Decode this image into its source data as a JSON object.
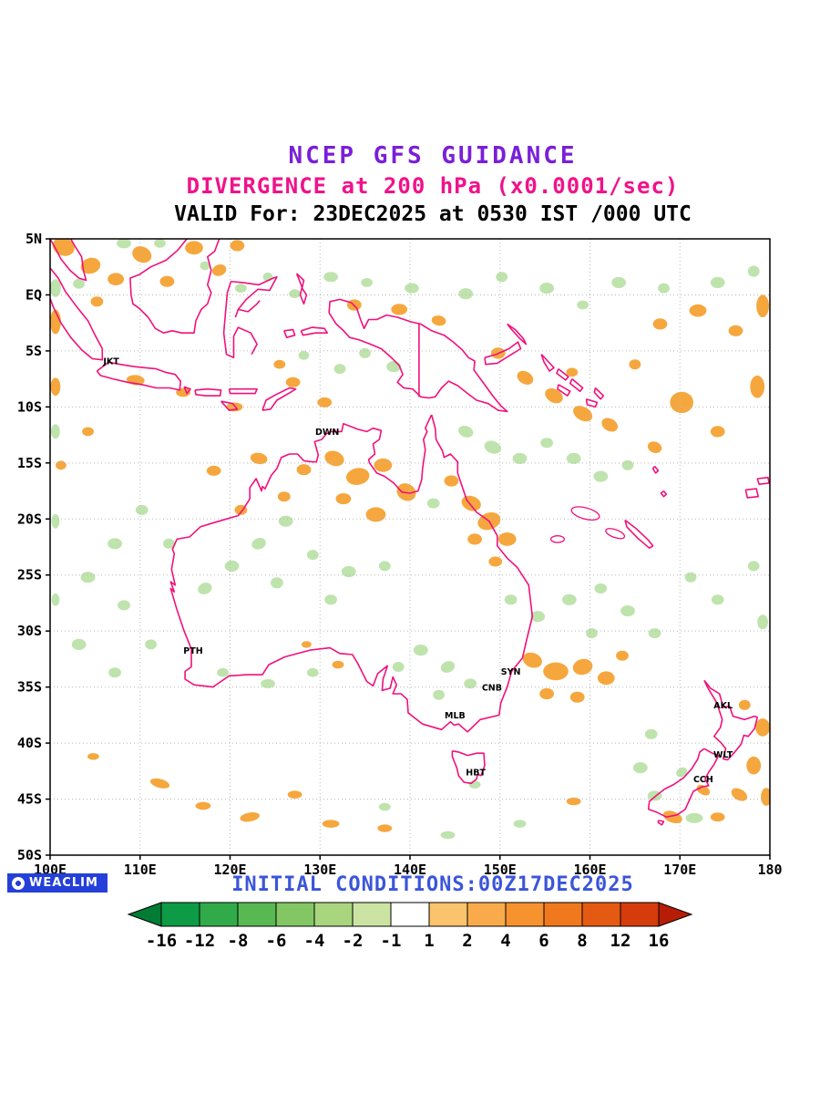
{
  "header": {
    "title": "NCEP GFS GUIDANCE",
    "subtitle": "DIVERGENCE at 200 hPa (x0.0001/sec)",
    "valid_line": "VALID For: 23DEC2025 at 0530 IST /000 UTC"
  },
  "footer": {
    "initial_conditions": "INITIAL CONDITIONS:00Z17DEC2025",
    "logo_text": "WEACLIM"
  },
  "colors": {
    "title_purple": "#7a1fd8",
    "title_magenta": "#f0128a",
    "coastline_pink": "#f0117c",
    "positive_fill": "#f5a73e",
    "negative_fill": "#bfe3ad",
    "grid_gray": "#b8b8b8",
    "footer_blue": "#3b55d9",
    "logo_bg": "#2440d9"
  },
  "chart_data": {
    "type": "heatmap",
    "title": "NCEP GFS GUIDANCE",
    "variable": "Divergence",
    "level": "200 hPa",
    "units": "x0.0001/sec",
    "valid": "23DEC2025 at 0530 IST /000 UTC",
    "initial_conditions": "00Z17DEC2025",
    "region": "100E-180E, 50S-5N (Australia / Oceania)",
    "xlim": [
      100,
      180
    ],
    "ylim": [
      -50,
      5
    ],
    "grid": "dotted",
    "x_ticks": [
      {
        "label": "100E",
        "lon": 100
      },
      {
        "label": "110E",
        "lon": 110
      },
      {
        "label": "120E",
        "lon": 120
      },
      {
        "label": "130E",
        "lon": 130
      },
      {
        "label": "140E",
        "lon": 140
      },
      {
        "label": "150E",
        "lon": 150
      },
      {
        "label": "160E",
        "lon": 160
      },
      {
        "label": "170E",
        "lon": 170
      },
      {
        "label": "180",
        "lon": 180
      }
    ],
    "y_ticks": [
      {
        "label": "5N",
        "lat": 5
      },
      {
        "label": "EQ",
        "lat": 0
      },
      {
        "label": "5S",
        "lat": -5
      },
      {
        "label": "10S",
        "lat": -10
      },
      {
        "label": "15S",
        "lat": -15
      },
      {
        "label": "20S",
        "lat": -20
      },
      {
        "label": "25S",
        "lat": -25
      },
      {
        "label": "30S",
        "lat": -30
      },
      {
        "label": "35S",
        "lat": -35
      },
      {
        "label": "40S",
        "lat": -40
      },
      {
        "label": "45S",
        "lat": -45
      },
      {
        "label": "50S",
        "lat": -50
      }
    ],
    "colorbar": {
      "tick_labels": [
        "-16",
        "-12",
        "-8",
        "-6",
        "-4",
        "-2",
        "-1",
        "1",
        "2",
        "4",
        "6",
        "8",
        "12",
        "16"
      ],
      "cell_colors": [
        "#0d9b45",
        "#31aa49",
        "#58b953",
        "#82c764",
        "#a8d57e",
        "#cbe4a4",
        "#ffffff",
        "#fbc36b",
        "#f9ab4b",
        "#f7932f",
        "#f0791d",
        "#e55a12",
        "#d63b0c"
      ],
      "arrow_left_color": "#027c35",
      "arrow_right_color": "#b71d06"
    },
    "stations": [
      {
        "id": "JKT",
        "lon": 106.8,
        "lat": -6.2
      },
      {
        "id": "DWN",
        "lon": 130.8,
        "lat": -12.5
      },
      {
        "id": "PTH",
        "lon": 115.9,
        "lat": -32.0
      },
      {
        "id": "SYN",
        "lon": 151.2,
        "lat": -33.9
      },
      {
        "id": "CNB",
        "lon": 149.1,
        "lat": -35.3
      },
      {
        "id": "MLB",
        "lon": 145.0,
        "lat": -37.8
      },
      {
        "id": "HBT",
        "lon": 147.3,
        "lat": -42.9
      },
      {
        "id": "AKL",
        "lon": 174.8,
        "lat": -36.9
      },
      {
        "id": "WLT",
        "lon": 174.8,
        "lat": -41.3
      },
      {
        "id": "CCH",
        "lon": 172.6,
        "lat": -43.5
      }
    ],
    "positive_regions": [
      [
        101.5,
        4.3,
        2.5,
        1.6,
        20
      ],
      [
        104.5,
        2.6,
        2.2,
        1.4,
        -15
      ],
      [
        107.3,
        1.4,
        1.8,
        1.1,
        0
      ],
      [
        110.2,
        3.6,
        2.2,
        1.4,
        25
      ],
      [
        113.0,
        1.2,
        1.6,
        1.0,
        0
      ],
      [
        116.0,
        4.2,
        2.0,
        1.2,
        0
      ],
      [
        118.8,
        2.2,
        1.6,
        1.0,
        -20
      ],
      [
        120.8,
        4.4,
        1.6,
        1.0,
        0
      ],
      [
        100.6,
        -2.4,
        1.2,
        2.2,
        0
      ],
      [
        105.2,
        -0.6,
        1.4,
        0.9,
        0
      ],
      [
        109.5,
        -7.6,
        2.0,
        0.9,
        5
      ],
      [
        114.8,
        -8.7,
        1.6,
        0.8,
        0
      ],
      [
        120.5,
        -10.0,
        1.8,
        0.8,
        0
      ],
      [
        127.0,
        -7.8,
        1.6,
        0.9,
        0
      ],
      [
        130.5,
        -9.6,
        1.6,
        0.9,
        0
      ],
      [
        125.5,
        -6.2,
        1.3,
        0.8,
        0
      ],
      [
        133.8,
        -0.9,
        1.6,
        1.0,
        0
      ],
      [
        138.8,
        -1.3,
        1.8,
        1.0,
        0
      ],
      [
        143.2,
        -2.3,
        1.6,
        0.9,
        10
      ],
      [
        131.6,
        -14.6,
        2.2,
        1.3,
        20
      ],
      [
        134.2,
        -16.2,
        2.6,
        1.5,
        -10
      ],
      [
        137.0,
        -15.2,
        2.0,
        1.2,
        0
      ],
      [
        139.6,
        -17.6,
        2.2,
        1.5,
        30
      ],
      [
        136.2,
        -19.6,
        2.2,
        1.3,
        0
      ],
      [
        132.6,
        -18.2,
        1.7,
        1.0,
        0
      ],
      [
        128.2,
        -15.6,
        1.6,
        1.0,
        0
      ],
      [
        123.2,
        -14.6,
        1.9,
        1.0,
        10
      ],
      [
        118.2,
        -15.7,
        1.6,
        0.9,
        0
      ],
      [
        121.2,
        -19.2,
        1.4,
        0.9,
        0
      ],
      [
        126.0,
        -18.0,
        1.4,
        0.9,
        0
      ],
      [
        144.6,
        -16.6,
        1.6,
        1.0,
        0
      ],
      [
        146.8,
        -18.6,
        2.2,
        1.3,
        20
      ],
      [
        148.8,
        -20.2,
        2.6,
        1.5,
        -20
      ],
      [
        150.8,
        -21.8,
        2.0,
        1.2,
        0
      ],
      [
        147.2,
        -21.8,
        1.6,
        1.0,
        0
      ],
      [
        149.5,
        -23.8,
        1.5,
        0.9,
        0
      ],
      [
        152.8,
        -7.4,
        1.9,
        1.1,
        30
      ],
      [
        156.0,
        -9.0,
        2.1,
        1.2,
        30
      ],
      [
        159.2,
        -10.6,
        2.3,
        1.2,
        30
      ],
      [
        162.2,
        -11.6,
        1.9,
        1.1,
        30
      ],
      [
        158.0,
        -6.9,
        1.3,
        0.8,
        0
      ],
      [
        149.8,
        -5.2,
        1.6,
        1.0,
        0
      ],
      [
        167.8,
        -2.6,
        1.6,
        1.0,
        0
      ],
      [
        172.0,
        -1.4,
        1.9,
        1.1,
        0
      ],
      [
        176.2,
        -3.2,
        1.6,
        1.0,
        0
      ],
      [
        179.2,
        -1.0,
        1.4,
        2.0,
        0
      ],
      [
        165.0,
        -6.2,
        1.3,
        0.9,
        0
      ],
      [
        170.2,
        -9.6,
        2.6,
        1.9,
        0
      ],
      [
        174.2,
        -12.2,
        1.6,
        1.0,
        0
      ],
      [
        178.6,
        -8.2,
        1.6,
        2.0,
        0
      ],
      [
        167.2,
        -13.6,
        1.6,
        1.0,
        20
      ],
      [
        153.6,
        -32.6,
        2.2,
        1.3,
        20
      ],
      [
        156.2,
        -33.6,
        2.8,
        1.6,
        0
      ],
      [
        159.2,
        -33.2,
        2.2,
        1.4,
        -15
      ],
      [
        161.8,
        -34.2,
        1.9,
        1.2,
        0
      ],
      [
        155.2,
        -35.6,
        1.6,
        1.0,
        0
      ],
      [
        158.6,
        -35.9,
        1.6,
        1.0,
        0
      ],
      [
        163.6,
        -32.2,
        1.4,
        0.9,
        0
      ],
      [
        101.2,
        -15.2,
        1.2,
        0.8,
        0
      ],
      [
        104.2,
        -12.2,
        1.3,
        0.8,
        0
      ],
      [
        100.6,
        -8.2,
        1.1,
        1.6,
        0
      ],
      [
        132.0,
        -33.0,
        1.3,
        0.7,
        0
      ],
      [
        128.5,
        -31.2,
        1.1,
        0.6,
        0
      ],
      [
        112.2,
        -43.6,
        2.2,
        0.8,
        15
      ],
      [
        117.0,
        -45.6,
        1.7,
        0.7,
        0
      ],
      [
        122.2,
        -46.6,
        2.2,
        0.8,
        -10
      ],
      [
        127.2,
        -44.6,
        1.6,
        0.7,
        0
      ],
      [
        131.2,
        -47.2,
        1.9,
        0.7,
        0
      ],
      [
        137.2,
        -47.6,
        1.6,
        0.7,
        0
      ],
      [
        104.8,
        -41.2,
        1.3,
        0.6,
        0
      ],
      [
        158.2,
        -45.2,
        1.6,
        0.7,
        0
      ],
      [
        177.2,
        -36.6,
        1.3,
        0.9,
        0
      ],
      [
        179.2,
        -38.6,
        1.6,
        1.6,
        0
      ],
      [
        178.2,
        -42.0,
        1.6,
        1.6,
        0
      ],
      [
        176.6,
        -44.6,
        1.9,
        1.0,
        30
      ],
      [
        172.6,
        -44.2,
        1.6,
        0.8,
        30
      ],
      [
        169.2,
        -46.6,
        2.2,
        1.0,
        20
      ],
      [
        174.2,
        -46.6,
        1.6,
        0.8,
        0
      ],
      [
        179.6,
        -44.8,
        1.2,
        1.6,
        0
      ]
    ],
    "negative_regions": [
      [
        100.6,
        0.6,
        1.2,
        1.6,
        0
      ],
      [
        103.2,
        1.0,
        1.3,
        0.9,
        0
      ],
      [
        108.2,
        4.6,
        1.6,
        0.9,
        0
      ],
      [
        112.2,
        4.6,
        1.3,
        0.8,
        0
      ],
      [
        117.2,
        2.6,
        1.1,
        0.8,
        0
      ],
      [
        121.2,
        0.6,
        1.3,
        0.8,
        0
      ],
      [
        124.2,
        1.6,
        1.1,
        0.8,
        0
      ],
      [
        127.2,
        0.1,
        1.3,
        0.8,
        0
      ],
      [
        131.2,
        1.6,
        1.6,
        0.9,
        0
      ],
      [
        135.2,
        1.1,
        1.3,
        0.8,
        0
      ],
      [
        140.2,
        0.6,
        1.6,
        0.9,
        0
      ],
      [
        146.2,
        0.1,
        1.6,
        1.0,
        0
      ],
      [
        150.2,
        1.6,
        1.3,
        0.9,
        0
      ],
      [
        155.2,
        0.6,
        1.6,
        1.0,
        0
      ],
      [
        159.2,
        -0.9,
        1.3,
        0.8,
        0
      ],
      [
        163.2,
        1.1,
        1.6,
        1.0,
        0
      ],
      [
        168.2,
        0.6,
        1.3,
        0.9,
        0
      ],
      [
        174.2,
        1.1,
        1.6,
        1.0,
        0
      ],
      [
        178.2,
        2.1,
        1.3,
        1.0,
        0
      ],
      [
        138.2,
        -6.4,
        1.6,
        1.0,
        0
      ],
      [
        135.0,
        -5.2,
        1.3,
        0.9,
        0
      ],
      [
        132.2,
        -6.6,
        1.3,
        0.9,
        0
      ],
      [
        128.2,
        -5.4,
        1.2,
        0.8,
        0
      ],
      [
        146.2,
        -12.2,
        1.7,
        1.0,
        20
      ],
      [
        149.2,
        -13.6,
        1.9,
        1.1,
        20
      ],
      [
        152.2,
        -14.6,
        1.6,
        1.0,
        0
      ],
      [
        155.2,
        -13.2,
        1.4,
        0.9,
        0
      ],
      [
        158.2,
        -14.6,
        1.6,
        1.0,
        0
      ],
      [
        161.2,
        -16.2,
        1.6,
        1.0,
        0
      ],
      [
        164.2,
        -15.2,
        1.3,
        0.9,
        0
      ],
      [
        142.6,
        -18.6,
        1.4,
        0.9,
        0
      ],
      [
        126.2,
        -20.2,
        1.6,
        1.0,
        0
      ],
      [
        123.2,
        -22.2,
        1.6,
        1.0,
        -20
      ],
      [
        120.2,
        -24.2,
        1.6,
        1.0,
        0
      ],
      [
        117.2,
        -26.2,
        1.6,
        1.0,
        -20
      ],
      [
        125.2,
        -25.7,
        1.4,
        1.0,
        0
      ],
      [
        129.2,
        -23.2,
        1.3,
        0.9,
        0
      ],
      [
        133.2,
        -24.7,
        1.6,
        1.0,
        0
      ],
      [
        137.2,
        -24.2,
        1.3,
        0.9,
        0
      ],
      [
        131.2,
        -27.2,
        1.4,
        0.9,
        0
      ],
      [
        113.2,
        -22.2,
        1.3,
        0.9,
        0
      ],
      [
        110.2,
        -19.2,
        1.4,
        0.9,
        0
      ],
      [
        107.2,
        -22.2,
        1.6,
        1.0,
        0
      ],
      [
        104.2,
        -25.2,
        1.6,
        1.0,
        0
      ],
      [
        108.2,
        -27.7,
        1.4,
        0.9,
        0
      ],
      [
        103.2,
        -31.2,
        1.6,
        1.0,
        0
      ],
      [
        107.2,
        -33.7,
        1.4,
        0.9,
        0
      ],
      [
        111.2,
        -31.2,
        1.3,
        0.9,
        0
      ],
      [
        100.6,
        -12.2,
        1.0,
        1.3,
        0
      ],
      [
        100.6,
        -20.2,
        0.9,
        1.3,
        0
      ],
      [
        100.6,
        -27.2,
        0.9,
        1.1,
        0
      ],
      [
        124.2,
        -34.7,
        1.6,
        0.8,
        0
      ],
      [
        119.2,
        -33.7,
        1.3,
        0.8,
        0
      ],
      [
        129.2,
        -33.7,
        1.3,
        0.8,
        0
      ],
      [
        141.2,
        -31.7,
        1.6,
        1.0,
        0
      ],
      [
        144.2,
        -33.2,
        1.6,
        1.0,
        -20
      ],
      [
        146.7,
        -34.7,
        1.4,
        0.9,
        0
      ],
      [
        143.2,
        -35.7,
        1.3,
        0.9,
        0
      ],
      [
        138.7,
        -33.2,
        1.3,
        0.9,
        0
      ],
      [
        151.2,
        -27.2,
        1.4,
        0.9,
        0
      ],
      [
        154.2,
        -28.7,
        1.6,
        1.0,
        0
      ],
      [
        157.7,
        -27.2,
        1.6,
        1.0,
        0
      ],
      [
        161.2,
        -26.2,
        1.4,
        0.9,
        0
      ],
      [
        164.2,
        -28.2,
        1.6,
        1.0,
        0
      ],
      [
        167.2,
        -30.2,
        1.4,
        0.9,
        0
      ],
      [
        160.2,
        -30.2,
        1.3,
        0.9,
        0
      ],
      [
        171.2,
        -25.2,
        1.3,
        0.9,
        0
      ],
      [
        174.2,
        -27.2,
        1.4,
        0.9,
        0
      ],
      [
        178.2,
        -24.2,
        1.3,
        0.9,
        0
      ],
      [
        179.2,
        -29.2,
        1.2,
        1.3,
        0
      ],
      [
        166.8,
        -39.2,
        1.4,
        0.9,
        0
      ],
      [
        165.6,
        -42.2,
        1.6,
        1.0,
        0
      ],
      [
        170.2,
        -42.6,
        1.3,
        0.8,
        -30
      ],
      [
        167.2,
        -44.7,
        1.6,
        0.9,
        0
      ],
      [
        171.6,
        -46.7,
        1.9,
        0.9,
        0
      ],
      [
        137.2,
        -45.7,
        1.3,
        0.7,
        0
      ],
      [
        147.2,
        -43.7,
        1.3,
        0.7,
        0
      ],
      [
        144.2,
        -48.2,
        1.6,
        0.7,
        0
      ],
      [
        152.2,
        -47.2,
        1.4,
        0.7,
        0
      ]
    ],
    "contour_outlines": [
      [
        159.5,
        -19.5,
        3.2,
        1.0,
        15
      ],
      [
        162.8,
        -21.3,
        2.2,
        0.7,
        20
      ],
      [
        156.4,
        -21.8,
        1.5,
        0.6,
        0
      ]
    ]
  }
}
